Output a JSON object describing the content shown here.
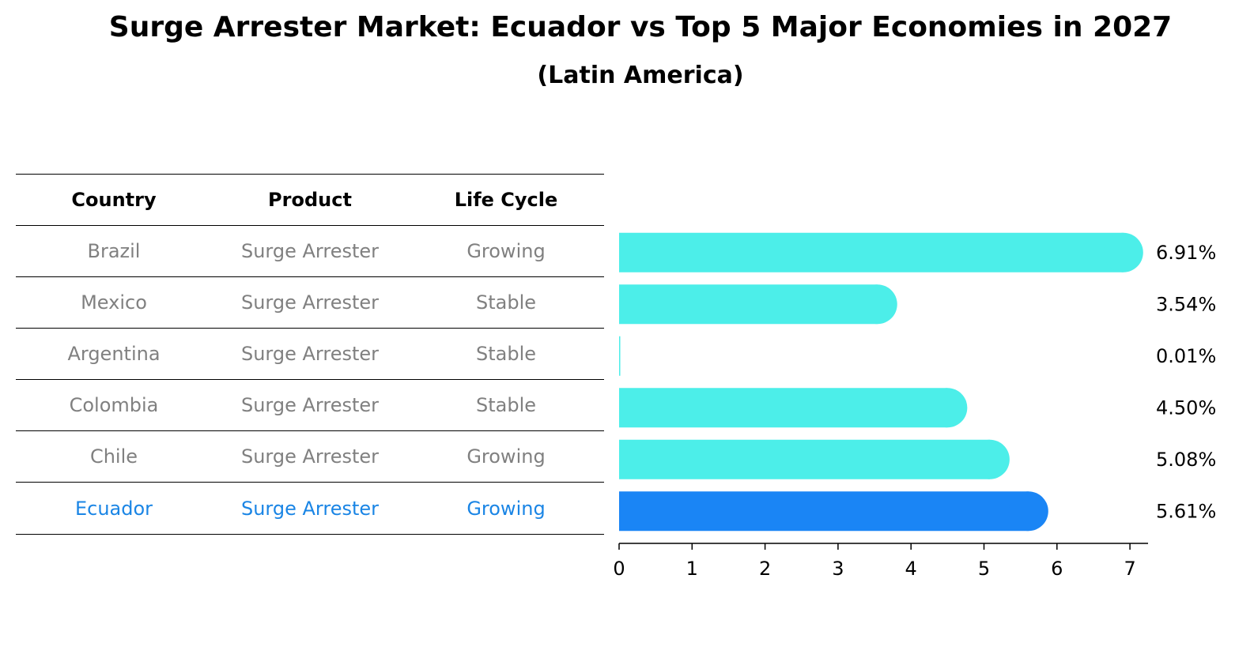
{
  "title": "Surge Arrester Market: Ecuador vs Top 5 Major Economies in 2027",
  "subtitle": "(Latin America)",
  "table": {
    "headers": [
      "Country",
      "Product",
      "Life Cycle"
    ],
    "rows": [
      [
        "Brazil",
        "Surge Arrester",
        "Growing"
      ],
      [
        "Mexico",
        "Surge Arrester",
        "Stable"
      ],
      [
        "Argentina",
        "Surge Arrester",
        "Stable"
      ],
      [
        "Colombia",
        "Surge Arrester",
        "Stable"
      ],
      [
        "Chile",
        "Surge Arrester",
        "Growing"
      ],
      [
        "Ecuador",
        "Surge Arrester",
        "Growing"
      ]
    ],
    "highlight_row": 5
  },
  "chart_data": {
    "type": "bar",
    "orientation": "horizontal",
    "categories": [
      "Brazil",
      "Mexico",
      "Argentina",
      "Colombia",
      "Chile",
      "Ecuador"
    ],
    "values": [
      6.91,
      3.54,
      0.01,
      4.5,
      5.08,
      5.61
    ],
    "value_labels": [
      "6.91%",
      "3.54%",
      "0.01%",
      "4.50%",
      "5.08%",
      "5.61%"
    ],
    "xlim": [
      0,
      7.3
    ],
    "xticks": [
      0,
      1,
      2,
      3,
      4,
      5,
      6,
      7
    ],
    "colors": {
      "default": "#4ceee9",
      "highlight": "#1a85f5",
      "highlight_text": "#1a85e5",
      "muted_text": "#808080"
    },
    "highlight_index": 5,
    "grid": false
  }
}
